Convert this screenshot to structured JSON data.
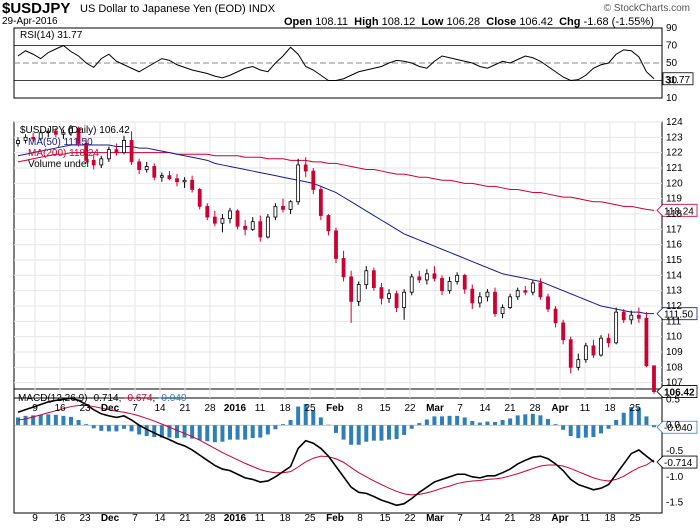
{
  "header": {
    "symbol": "$USDJPY",
    "name": "US Dollar to Japanese Yen (EOD)",
    "exchange": "INDX",
    "date": "29-Apr-2016",
    "open_label": "Open",
    "open": "108.11",
    "high_label": "High",
    "high": "108.12",
    "low_label": "Low",
    "low": "106.28",
    "close_label": "Close",
    "close": "106.42",
    "chg_label": "Chg",
    "chg": "-1.68 (-1.55%)",
    "brand": "© StockCharts.com"
  },
  "colors": {
    "up": "#000000",
    "down": "#cc0033",
    "ma50": "#1a1a8c",
    "ma200": "#cc0033",
    "macd": "#000000",
    "signal": "#cc0033",
    "hist": "#2e7fb8",
    "rsi_fill": "#8b5a5a"
  },
  "chart_data": [
    {
      "type": "line",
      "panel": "rsi",
      "legend": "RSI(14) 31.77",
      "ylim": [
        10,
        90
      ],
      "y_ticks": [
        10,
        30,
        50,
        70,
        90
      ],
      "reference_lines": [
        30,
        50,
        70
      ],
      "last_label": "31.77",
      "values": [
        58,
        64,
        60,
        55,
        62,
        66,
        70,
        63,
        58,
        50,
        45,
        55,
        60,
        52,
        48,
        44,
        40,
        45,
        50,
        55,
        53,
        48,
        45,
        42,
        40,
        38,
        35,
        33,
        36,
        40,
        44,
        46,
        42,
        40,
        50,
        58,
        68,
        60,
        46,
        42,
        36,
        30,
        30,
        32,
        36,
        40,
        42,
        44,
        46,
        50,
        53,
        52,
        50,
        46,
        44,
        52,
        58,
        56,
        54,
        52,
        50,
        46,
        44,
        48,
        52,
        50,
        54,
        58,
        56,
        52,
        46,
        40,
        34,
        30,
        31,
        36,
        44,
        48,
        50,
        60,
        65,
        64,
        57,
        40,
        32
      ]
    },
    {
      "type": "candlestick",
      "panel": "price",
      "legend": [
        "$USDJPY (Daily) 106.42",
        "MA(50) 111.50",
        "MA(200) 118.24",
        "Volume undef"
      ],
      "ylim": [
        106,
        124
      ],
      "y_ticks": [
        107,
        108,
        109,
        110,
        111,
        112,
        113,
        114,
        115,
        116,
        117,
        118,
        119,
        120,
        121,
        122,
        123,
        124
      ],
      "x_labels": [
        "9",
        "16",
        "23",
        "Dec",
        "7",
        "14",
        "21",
        "28",
        "2016",
        "11",
        "18",
        "25",
        "Feb",
        "8",
        "15",
        "22",
        "Mar",
        "7",
        "14",
        "21",
        "28",
        "Apr",
        "11",
        "18",
        "25"
      ],
      "last_labels": {
        "ma200": "118.24",
        "ma50": "111.50",
        "close": "106.42"
      },
      "ohlc": [
        [
          122.6,
          123.0,
          122.4,
          122.8
        ],
        [
          122.8,
          123.2,
          122.6,
          123.0
        ],
        [
          123.0,
          123.3,
          122.7,
          122.9
        ],
        [
          122.9,
          123.5,
          122.8,
          123.3
        ],
        [
          123.3,
          123.6,
          123.0,
          123.4
        ],
        [
          123.4,
          123.6,
          123.0,
          123.2
        ],
        [
          123.2,
          123.5,
          122.9,
          123.3
        ],
        [
          123.3,
          123.8,
          123.1,
          123.6
        ],
        [
          123.6,
          123.7,
          122.4,
          122.6
        ],
        [
          122.6,
          122.9,
          121.3,
          121.5
        ],
        [
          121.5,
          121.9,
          120.9,
          121.2
        ],
        [
          121.2,
          121.8,
          121.0,
          121.6
        ],
        [
          121.6,
          122.4,
          121.4,
          122.2
        ],
        [
          122.2,
          122.6,
          121.8,
          122.0
        ],
        [
          122.0,
          123.1,
          121.9,
          122.8
        ],
        [
          122.8,
          123.4,
          121.2,
          121.4
        ],
        [
          121.4,
          121.6,
          120.6,
          120.9
        ],
        [
          120.9,
          121.4,
          120.7,
          121.1
        ],
        [
          121.1,
          121.3,
          120.2,
          120.4
        ],
        [
          120.4,
          120.7,
          120.1,
          120.5
        ],
        [
          120.5,
          120.8,
          120.2,
          120.3
        ],
        [
          120.3,
          120.6,
          119.8,
          120.1
        ],
        [
          120.1,
          120.4,
          119.7,
          120.2
        ],
        [
          120.2,
          120.5,
          119.4,
          119.6
        ],
        [
          119.6,
          119.7,
          118.3,
          118.5
        ],
        [
          118.5,
          118.7,
          117.6,
          117.8
        ],
        [
          117.8,
          118.2,
          117.2,
          117.4
        ],
        [
          117.4,
          118.0,
          116.8,
          117.7
        ],
        [
          117.7,
          118.4,
          117.4,
          118.2
        ],
        [
          118.2,
          118.3,
          117.0,
          117.2
        ],
        [
          117.2,
          117.6,
          116.6,
          117.0
        ],
        [
          117.0,
          117.8,
          116.9,
          117.5
        ],
        [
          117.5,
          117.9,
          116.2,
          116.5
        ],
        [
          116.5,
          118.0,
          116.4,
          117.8
        ],
        [
          117.8,
          118.7,
          117.6,
          118.5
        ],
        [
          118.5,
          119.0,
          118.1,
          118.3
        ],
        [
          118.3,
          118.9,
          118.0,
          118.8
        ],
        [
          118.8,
          121.6,
          118.6,
          121.2
        ],
        [
          121.2,
          121.7,
          120.4,
          120.8
        ],
        [
          120.8,
          121.0,
          119.3,
          119.6
        ],
        [
          119.6,
          119.8,
          117.6,
          117.9
        ],
        [
          117.9,
          118.0,
          116.6,
          116.9
        ],
        [
          116.9,
          117.1,
          114.8,
          115.1
        ],
        [
          115.1,
          115.6,
          113.6,
          113.9
        ],
        [
          113.9,
          114.3,
          110.9,
          112.3
        ],
        [
          112.3,
          113.6,
          112.0,
          113.4
        ],
        [
          113.4,
          114.6,
          113.1,
          114.3
        ],
        [
          114.3,
          114.5,
          113.0,
          113.2
        ],
        [
          113.2,
          113.5,
          112.1,
          112.5
        ],
        [
          112.5,
          113.1,
          112.2,
          112.8
        ],
        [
          112.8,
          113.0,
          111.6,
          111.9
        ],
        [
          111.9,
          113.1,
          111.1,
          112.9
        ],
        [
          112.9,
          114.1,
          112.7,
          113.9
        ],
        [
          113.9,
          114.3,
          113.5,
          113.7
        ],
        [
          113.7,
          114.4,
          113.4,
          114.1
        ],
        [
          114.1,
          114.6,
          113.6,
          113.8
        ],
        [
          113.8,
          114.0,
          112.7,
          113.0
        ],
        [
          113.0,
          113.9,
          112.8,
          113.6
        ],
        [
          113.6,
          114.2,
          113.4,
          114.0
        ],
        [
          114.0,
          114.1,
          112.8,
          113.1
        ],
        [
          113.1,
          113.4,
          111.8,
          112.2
        ],
        [
          112.2,
          112.9,
          111.9,
          112.6
        ],
        [
          112.6,
          113.1,
          112.3,
          112.9
        ],
        [
          112.9,
          113.2,
          111.3,
          111.5
        ],
        [
          111.5,
          112.1,
          111.2,
          111.9
        ],
        [
          111.9,
          112.8,
          111.8,
          112.6
        ],
        [
          112.6,
          113.2,
          112.4,
          113.0
        ],
        [
          113.0,
          113.3,
          112.7,
          112.9
        ],
        [
          112.9,
          113.7,
          112.7,
          113.5
        ],
        [
          113.5,
          113.8,
          112.4,
          112.6
        ],
        [
          112.6,
          112.8,
          111.6,
          111.8
        ],
        [
          111.8,
          112.0,
          110.6,
          110.9
        ],
        [
          110.9,
          111.1,
          109.5,
          109.8
        ],
        [
          109.8,
          110.0,
          107.6,
          108.0
        ],
        [
          108.0,
          108.9,
          107.8,
          108.5
        ],
        [
          108.5,
          109.6,
          108.3,
          109.4
        ],
        [
          109.4,
          109.8,
          108.6,
          108.8
        ],
        [
          108.8,
          110.1,
          108.7,
          109.9
        ],
        [
          109.9,
          110.2,
          109.3,
          109.6
        ],
        [
          109.6,
          111.9,
          109.5,
          111.6
        ],
        [
          111.6,
          111.8,
          110.9,
          111.1
        ],
        [
          111.1,
          111.7,
          110.8,
          111.4
        ],
        [
          111.4,
          111.9,
          110.9,
          111.2
        ],
        [
          111.2,
          111.6,
          108.0,
          108.1
        ],
        [
          108.1,
          108.12,
          106.28,
          106.42
        ]
      ],
      "ma50": [
        121.8,
        121.9,
        122.0,
        122.1,
        122.2,
        122.3,
        122.4,
        122.5,
        122.5,
        122.5,
        122.5,
        122.5,
        122.5,
        122.4,
        122.4,
        122.4,
        122.3,
        122.3,
        122.2,
        122.1,
        122.0,
        121.9,
        121.8,
        121.7,
        121.6,
        121.5,
        121.3,
        121.2,
        121.1,
        121.0,
        120.9,
        120.8,
        120.7,
        120.6,
        120.5,
        120.4,
        120.3,
        120.2,
        120.1,
        120.0,
        119.8,
        119.6,
        119.4,
        119.1,
        118.8,
        118.5,
        118.2,
        117.9,
        117.6,
        117.3,
        117.0,
        116.7,
        116.5,
        116.3,
        116.1,
        115.9,
        115.7,
        115.5,
        115.3,
        115.1,
        114.9,
        114.7,
        114.5,
        114.3,
        114.1,
        114.0,
        113.9,
        113.8,
        113.7,
        113.6,
        113.4,
        113.2,
        113.0,
        112.8,
        112.6,
        112.4,
        112.2,
        112.0,
        111.9,
        111.8,
        111.7,
        111.6,
        111.6,
        111.5,
        111.5
      ],
      "ma200": [
        121.4,
        121.5,
        121.6,
        121.7,
        121.8,
        121.9,
        121.9,
        122.0,
        122.0,
        122.0,
        122.0,
        122.0,
        122.0,
        122.0,
        122.0,
        122.0,
        122.0,
        122.0,
        122.0,
        122.0,
        122.0,
        121.9,
        121.9,
        121.9,
        121.9,
        121.9,
        121.8,
        121.8,
        121.8,
        121.8,
        121.7,
        121.7,
        121.7,
        121.6,
        121.6,
        121.6,
        121.5,
        121.5,
        121.5,
        121.4,
        121.4,
        121.3,
        121.3,
        121.2,
        121.1,
        121.0,
        120.9,
        120.9,
        120.8,
        120.7,
        120.6,
        120.6,
        120.5,
        120.4,
        120.4,
        120.3,
        120.2,
        120.2,
        120.1,
        120.0,
        120.0,
        119.9,
        119.8,
        119.8,
        119.7,
        119.6,
        119.6,
        119.5,
        119.4,
        119.4,
        119.3,
        119.2,
        119.1,
        119.1,
        119.0,
        118.9,
        118.8,
        118.8,
        118.7,
        118.6,
        118.5,
        118.5,
        118.4,
        118.3,
        118.24
      ]
    },
    {
      "type": "line",
      "panel": "macd",
      "legend": [
        "MACD(12,26,9) -0.714, -0.674, -0.040"
      ],
      "legend_parts": {
        "name": "MACD(12,26,9)",
        "macd": "-0.714",
        "signal": "-0.674",
        "hist": "-0.040"
      },
      "ylim": [
        -1.7,
        0.7
      ],
      "y_ticks": [
        -1.5,
        -1.0,
        -0.5,
        0.0,
        0.5
      ],
      "last_labels": {
        "hist": "-0.040",
        "macd": "-0.714"
      },
      "macd": [
        0.25,
        0.3,
        0.35,
        0.4,
        0.45,
        0.48,
        0.5,
        0.52,
        0.48,
        0.4,
        0.3,
        0.22,
        0.18,
        0.15,
        0.18,
        0.1,
        0.0,
        -0.08,
        -0.15,
        -0.22,
        -0.28,
        -0.35,
        -0.4,
        -0.48,
        -0.58,
        -0.68,
        -0.78,
        -0.85,
        -0.88,
        -0.95,
        -1.02,
        -1.05,
        -1.1,
        -1.08,
        -1.0,
        -0.9,
        -0.8,
        -0.45,
        -0.3,
        -0.35,
        -0.45,
        -0.6,
        -0.8,
        -1.0,
        -1.2,
        -1.3,
        -1.32,
        -1.38,
        -1.45,
        -1.5,
        -1.55,
        -1.52,
        -1.42,
        -1.3,
        -1.2,
        -1.1,
        -1.05,
        -1.0,
        -0.95,
        -0.95,
        -1.0,
        -1.02,
        -0.98,
        -0.98,
        -0.92,
        -0.85,
        -0.75,
        -0.68,
        -0.62,
        -0.6,
        -0.65,
        -0.75,
        -0.88,
        -1.05,
        -1.15,
        -1.2,
        -1.25,
        -1.22,
        -1.15,
        -0.95,
        -0.75,
        -0.55,
        -0.48,
        -0.6,
        -0.714
      ],
      "signal": [
        0.1,
        0.12,
        0.16,
        0.2,
        0.24,
        0.28,
        0.32,
        0.36,
        0.38,
        0.38,
        0.36,
        0.33,
        0.3,
        0.27,
        0.25,
        0.22,
        0.18,
        0.13,
        0.08,
        0.02,
        -0.04,
        -0.1,
        -0.16,
        -0.22,
        -0.29,
        -0.37,
        -0.45,
        -0.53,
        -0.6,
        -0.67,
        -0.74,
        -0.8,
        -0.86,
        -0.9,
        -0.92,
        -0.92,
        -0.9,
        -0.81,
        -0.71,
        -0.64,
        -0.6,
        -0.61,
        -0.65,
        -0.72,
        -0.82,
        -0.92,
        -1.0,
        -1.08,
        -1.15,
        -1.22,
        -1.28,
        -1.33,
        -1.35,
        -1.34,
        -1.31,
        -1.27,
        -1.22,
        -1.18,
        -1.13,
        -1.1,
        -1.08,
        -1.07,
        -1.05,
        -1.04,
        -1.02,
        -0.98,
        -0.94,
        -0.89,
        -0.84,
        -0.79,
        -0.77,
        -0.77,
        -0.79,
        -0.84,
        -0.9,
        -0.96,
        -1.02,
        -1.06,
        -1.08,
        -1.05,
        -0.99,
        -0.9,
        -0.82,
        -0.77,
        -0.674
      ],
      "histogram": [
        0.15,
        0.18,
        0.19,
        0.2,
        0.21,
        0.2,
        0.18,
        0.16,
        0.1,
        0.02,
        -0.06,
        -0.11,
        -0.12,
        -0.12,
        -0.07,
        -0.12,
        -0.18,
        -0.21,
        -0.23,
        -0.24,
        -0.24,
        -0.25,
        -0.24,
        -0.26,
        -0.29,
        -0.31,
        -0.33,
        -0.32,
        -0.28,
        -0.28,
        -0.28,
        -0.25,
        -0.24,
        -0.18,
        -0.08,
        0.02,
        0.1,
        0.36,
        0.41,
        0.29,
        0.15,
        0.01,
        -0.15,
        -0.28,
        -0.38,
        -0.38,
        -0.32,
        -0.3,
        -0.3,
        -0.28,
        -0.27,
        -0.19,
        -0.07,
        0.04,
        0.11,
        0.17,
        0.17,
        0.18,
        0.18,
        0.15,
        0.08,
        0.05,
        0.07,
        0.06,
        0.1,
        0.13,
        0.19,
        0.21,
        0.22,
        0.19,
        0.12,
        0.02,
        -0.09,
        -0.21,
        -0.25,
        -0.24,
        -0.23,
        -0.16,
        -0.07,
        0.1,
        0.24,
        0.35,
        0.34,
        0.17,
        -0.04
      ]
    }
  ]
}
